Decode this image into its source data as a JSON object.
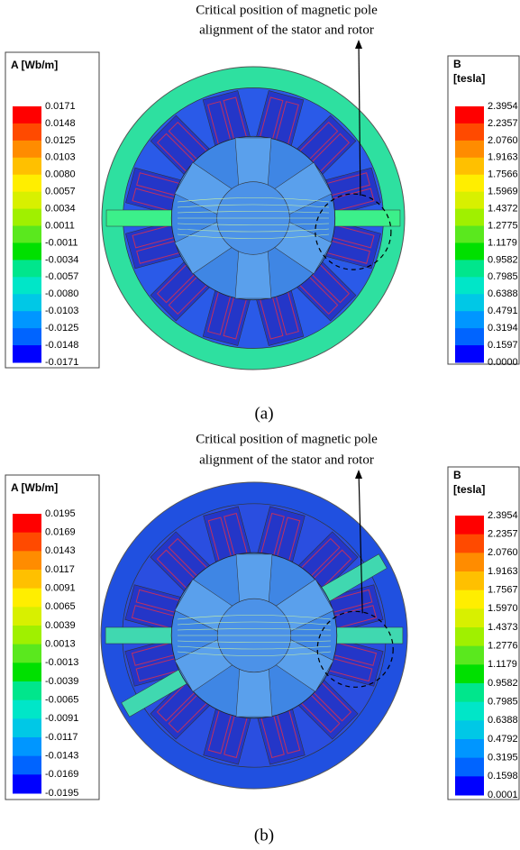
{
  "panels": [
    {
      "annotation": [
        "Critical position of magnetic pole",
        "alignment of the stator and rotor"
      ],
      "left_legend": {
        "title": "A [Wb/m]",
        "labels": [
          "0.0171",
          "0.0148",
          "0.0125",
          "0.0103",
          "0.0080",
          "0.0057",
          "0.0034",
          "0.0011",
          "-0.0011",
          "-0.0034",
          "-0.0057",
          "-0.0080",
          "-0.0103",
          "-0.0125",
          "-0.0148",
          "-0.0171"
        ]
      },
      "right_legend": {
        "title": [
          "B",
          "[tesla]"
        ],
        "labels": [
          "2.3954",
          "2.2357",
          "2.0760",
          "1.9163",
          "1.7566",
          "1.5969",
          "1.4372",
          "1.2775",
          "1.1179",
          "0.9582",
          "0.7985",
          "0.6388",
          "0.4791",
          "0.3194",
          "0.1597",
          "0.0000"
        ]
      },
      "caption": "(a)"
    },
    {
      "annotation": [
        "Critical position of magnetic pole",
        "alignment of the stator and rotor"
      ],
      "left_legend": {
        "title": "A [Wb/m]",
        "labels": [
          "0.0195",
          "0.0169",
          "0.0143",
          "0.0117",
          "0.0091",
          "0.0065",
          "0.0039",
          "0.0013",
          "-0.0013",
          "-0.0039",
          "-0.0065",
          "-0.0091",
          "-0.0117",
          "-0.0143",
          "-0.0169",
          "-0.0195"
        ]
      },
      "right_legend": {
        "title": [
          "B",
          "[tesla]"
        ],
        "labels": [
          "2.3954",
          "2.2357",
          "2.0760",
          "1.9163",
          "1.7567",
          "1.5970",
          "1.4373",
          "1.2776",
          "1.1179",
          "0.9582",
          "0.7985",
          "0.6388",
          "0.4792",
          "0.3195",
          "0.1598",
          "0.0001"
        ]
      },
      "caption": "(b)"
    }
  ]
}
